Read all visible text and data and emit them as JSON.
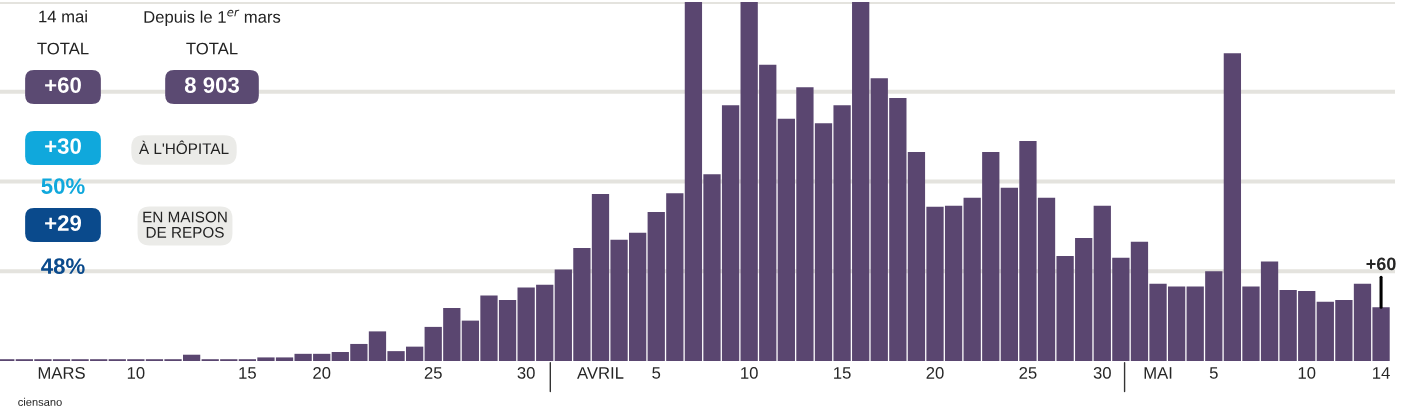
{
  "chart_data": {
    "type": "bar",
    "categories": [
      null,
      null,
      null,
      "MARS",
      null,
      null,
      null,
      "10",
      null,
      null,
      null,
      null,
      null,
      "15",
      null,
      null,
      null,
      "20",
      null,
      null,
      null,
      null,
      null,
      "25",
      null,
      null,
      null,
      null,
      "30",
      null,
      null,
      null,
      "AVRIL",
      null,
      null,
      "5",
      null,
      null,
      null,
      null,
      "10",
      null,
      null,
      null,
      null,
      "15",
      null,
      null,
      null,
      null,
      "20",
      null,
      null,
      null,
      null,
      "25",
      null,
      null,
      null,
      "30",
      null,
      null,
      "MAI",
      null,
      null,
      "5",
      null,
      null,
      null,
      null,
      "10",
      null,
      null,
      null,
      "14"
    ],
    "values": [
      2,
      2,
      2,
      2,
      2,
      2,
      2,
      2,
      2,
      2,
      7,
      2,
      2,
      2,
      4,
      4,
      8,
      8,
      10,
      19,
      33,
      11,
      16,
      38,
      59,
      45,
      73,
      68,
      82,
      85,
      102,
      126,
      186,
      135,
      143,
      166,
      187,
      400,
      208,
      285,
      400,
      330,
      270,
      305,
      265,
      285,
      400,
      315,
      293,
      233,
      172,
      173,
      182,
      233,
      193,
      245,
      182,
      117,
      137,
      173,
      115,
      133,
      86,
      83,
      83,
      100,
      343,
      83,
      111,
      79,
      78,
      66,
      68,
      86,
      60
    ],
    "value_labels": [
      null,
      null,
      null,
      null,
      null,
      null,
      null,
      null,
      null,
      null,
      null,
      null,
      null,
      null,
      null,
      null,
      null,
      null,
      null,
      null,
      null,
      null,
      null,
      null,
      null,
      null,
      null,
      null,
      null,
      null,
      null,
      null,
      null,
      null,
      null,
      null,
      null,
      null,
      null,
      null,
      null,
      null,
      null,
      null,
      null,
      null,
      null,
      null,
      null,
      null,
      null,
      null,
      null,
      null,
      null,
      null,
      null,
      null,
      null,
      null,
      null,
      null,
      null,
      null,
      null,
      null,
      null,
      null,
      null,
      null,
      null,
      null,
      null,
      null,
      "+60"
    ],
    "color": "#5a4670",
    "ylim": [
      0,
      400
    ],
    "yticks": [
      {
        "value": 100,
        "label": null
      },
      {
        "value": 200,
        "label": null
      },
      {
        "value": 300,
        "label": null
      },
      {
        "value": 400,
        "label": null
      }
    ],
    "grid": "y",
    "tick_labels": "x",
    "annotations": [
      "14 mai",
      "TOTAL",
      "+60",
      "Depuis le 1$^{er}$ mars",
      "TOTAL",
      "8 903",
      "+30",
      "À L'HÔPITAL",
      "50%",
      "+29",
      "EN MAISON\nDE REPOS",
      "48%",
      "ciensano"
    ]
  }
}
